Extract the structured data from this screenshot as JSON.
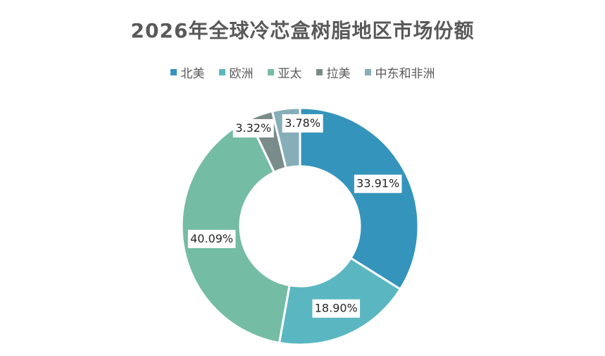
{
  "chart_data": {
    "type": "pie",
    "title": "2026年全球冷芯盒树脂地区市场份额",
    "donut": true,
    "legend_position": "top",
    "categories": [
      "北美",
      "欧洲",
      "亚太",
      "拉美",
      "中东和非洲"
    ],
    "values": [
      33.91,
      18.9,
      40.09,
      3.32,
      3.78
    ],
    "labels": [
      "33.91%",
      "18.90%",
      "40.09%",
      "3.32%",
      "3.78%"
    ],
    "colors": [
      "#3594BC",
      "#5AB7C1",
      "#75BCA5",
      "#7A8C8A",
      "#86AEB8"
    ]
  }
}
